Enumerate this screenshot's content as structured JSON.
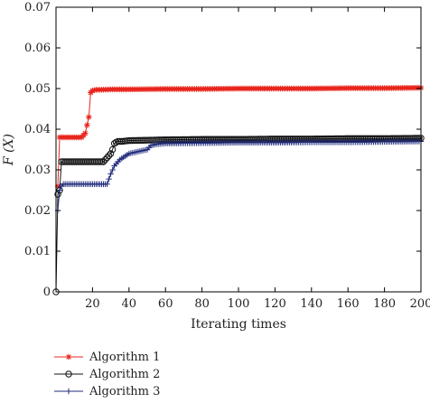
{
  "chart_data": {
    "type": "line",
    "title": "",
    "xlabel": "Iterating times",
    "ylabel": "F (X)",
    "xlim": [
      0,
      200
    ],
    "ylim": [
      0,
      0.07
    ],
    "xticks": [
      20,
      40,
      60,
      80,
      100,
      120,
      140,
      160,
      180,
      200
    ],
    "yticks": [
      0,
      0.01,
      0.02,
      0.03,
      0.04,
      0.05,
      0.06,
      0.07
    ],
    "xtick_labels": [
      "20",
      "40",
      "60",
      "80",
      "100",
      "120",
      "140",
      "160",
      "180",
      "200"
    ],
    "ytick_labels": [
      "0",
      "0.01",
      "0.02",
      "0.03",
      "0.04",
      "0.05",
      "0.06",
      "0.07"
    ],
    "grid": false,
    "legend": "below-left",
    "series": [
      {
        "name": "Algorithm 1",
        "color": "#e8251c",
        "marker": "asterisk",
        "x": [
          1,
          2,
          4,
          6,
          8,
          10,
          12,
          14,
          15,
          16,
          17,
          18,
          19,
          20,
          22,
          25,
          30,
          40,
          60,
          80,
          100,
          120,
          140,
          160,
          180,
          200
        ],
        "y": [
          0.026,
          0.038,
          0.038,
          0.038,
          0.038,
          0.038,
          0.038,
          0.038,
          0.0385,
          0.039,
          0.041,
          0.043,
          0.049,
          0.0495,
          0.0497,
          0.0497,
          0.0498,
          0.0498,
          0.0499,
          0.0499,
          0.05,
          0.05,
          0.05,
          0.0501,
          0.0501,
          0.0502
        ]
      },
      {
        "name": "Algorithm 2",
        "color": "#111111",
        "marker": "circle",
        "x": [
          0,
          1,
          2,
          3,
          4,
          10,
          20,
          26,
          28,
          30,
          31,
          32,
          33,
          34,
          36,
          40,
          50,
          60,
          80,
          100,
          120,
          140,
          160,
          180,
          200
        ],
        "y": [
          0,
          0.024,
          0.025,
          0.032,
          0.032,
          0.032,
          0.032,
          0.032,
          0.033,
          0.034,
          0.035,
          0.0365,
          0.0368,
          0.037,
          0.037,
          0.0372,
          0.0373,
          0.0374,
          0.0375,
          0.0375,
          0.0376,
          0.0376,
          0.0377,
          0.0377,
          0.0378
        ]
      },
      {
        "name": "Algorithm 3",
        "color": "#1f2a7a",
        "marker": "plus",
        "x": [
          1,
          2,
          3,
          4,
          5,
          10,
          20,
          28,
          30,
          32,
          35,
          40,
          45,
          50,
          52,
          55,
          60,
          80,
          100,
          120,
          140,
          160,
          180,
          200
        ],
        "y": [
          0.02,
          0.025,
          0.026,
          0.0265,
          0.0265,
          0.0265,
          0.0265,
          0.0265,
          0.029,
          0.031,
          0.0325,
          0.034,
          0.0345,
          0.035,
          0.036,
          0.0363,
          0.0365,
          0.0366,
          0.0367,
          0.0367,
          0.0368,
          0.0368,
          0.0369,
          0.037
        ]
      }
    ]
  }
}
